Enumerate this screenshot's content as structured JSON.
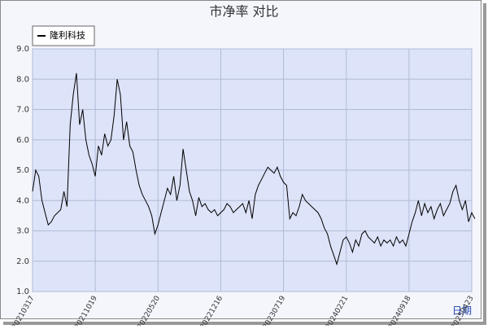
{
  "chart_data": {
    "type": "line",
    "title": "市净率  对比",
    "x_label": "日期",
    "categories": [
      "20210317",
      null,
      null,
      null,
      null,
      null,
      null,
      null,
      null,
      null,
      null,
      null,
      null,
      null,
      null,
      null,
      null,
      null,
      null,
      null,
      "20211019",
      null,
      null,
      null,
      null,
      null,
      null,
      null,
      null,
      null,
      null,
      null,
      null,
      null,
      null,
      null,
      null,
      null,
      null,
      null,
      "20220520",
      null,
      null,
      null,
      null,
      null,
      null,
      null,
      null,
      null,
      null,
      null,
      null,
      null,
      null,
      null,
      null,
      null,
      null,
      null,
      "20221216",
      null,
      null,
      null,
      null,
      null,
      null,
      null,
      null,
      null,
      null,
      null,
      null,
      null,
      null,
      null,
      null,
      null,
      null,
      null,
      "20230719",
      null,
      null,
      null,
      null,
      null,
      null,
      null,
      null,
      null,
      null,
      null,
      null,
      null,
      null,
      null,
      null,
      null,
      null,
      null,
      "20240221",
      null,
      null,
      null,
      null,
      null,
      null,
      null,
      null,
      null,
      null,
      null,
      null,
      null,
      null,
      null,
      null,
      null,
      null,
      null,
      "20240918",
      null,
      null,
      null,
      null,
      null,
      null,
      null,
      null,
      null,
      null,
      null,
      null,
      null,
      null,
      null,
      null,
      null,
      null,
      null,
      "20250423",
      null
    ],
    "series": [
      {
        "name": "隆利科技",
        "color": "#000000",
        "values": [
          4.3,
          5.0,
          4.8,
          4.0,
          3.6,
          3.2,
          3.3,
          3.5,
          3.6,
          3.7,
          4.3,
          3.8,
          6.5,
          7.5,
          8.2,
          6.5,
          7.0,
          6.0,
          5.5,
          5.2,
          4.8,
          5.8,
          5.5,
          6.2,
          5.8,
          6.0,
          6.8,
          8.0,
          7.5,
          6.0,
          6.6,
          5.8,
          5.6,
          5.0,
          4.5,
          4.2,
          4.0,
          3.8,
          3.5,
          2.9,
          3.2,
          3.6,
          4.0,
          4.4,
          4.2,
          4.8,
          4.0,
          4.5,
          5.7,
          5.0,
          4.3,
          4.0,
          3.5,
          4.1,
          3.8,
          3.9,
          3.7,
          3.6,
          3.7,
          3.5,
          3.6,
          3.7,
          3.9,
          3.8,
          3.6,
          3.7,
          3.8,
          3.9,
          3.6,
          4.0,
          3.4,
          4.2,
          4.5,
          4.7,
          4.9,
          5.1,
          5.0,
          4.9,
          5.1,
          4.8,
          4.6,
          4.5,
          3.4,
          3.6,
          3.5,
          3.8,
          4.2,
          4.0,
          3.9,
          3.8,
          3.7,
          3.6,
          3.4,
          3.1,
          2.9,
          2.5,
          2.2,
          1.9,
          2.3,
          2.7,
          2.8,
          2.6,
          2.3,
          2.7,
          2.5,
          2.9,
          3.0,
          2.8,
          2.7,
          2.6,
          2.8,
          2.5,
          2.7,
          2.6,
          2.7,
          2.5,
          2.8,
          2.6,
          2.7,
          2.5,
          2.9,
          3.3,
          3.6,
          4.0,
          3.5,
          3.9,
          3.6,
          3.8,
          3.4,
          3.7,
          3.9,
          3.5,
          3.7,
          3.9,
          4.3,
          4.5,
          4.0,
          3.7,
          4.0,
          3.3,
          3.6,
          3.4
        ]
      }
    ],
    "ylim": [
      1,
      9
    ],
    "yticks": [
      {
        "value": 1,
        "label": "1.0"
      },
      {
        "value": 2,
        "label": "2.0"
      },
      {
        "value": 3,
        "label": "3.0"
      },
      {
        "value": 4,
        "label": "4.0"
      },
      {
        "value": 5,
        "label": "5.0"
      },
      {
        "value": 6,
        "label": "6.0"
      },
      {
        "value": 7,
        "label": "7.0"
      },
      {
        "value": 8,
        "label": "8.0"
      },
      {
        "value": 9,
        "label": "9.0"
      }
    ],
    "grid": true,
    "legend": "top-left"
  }
}
